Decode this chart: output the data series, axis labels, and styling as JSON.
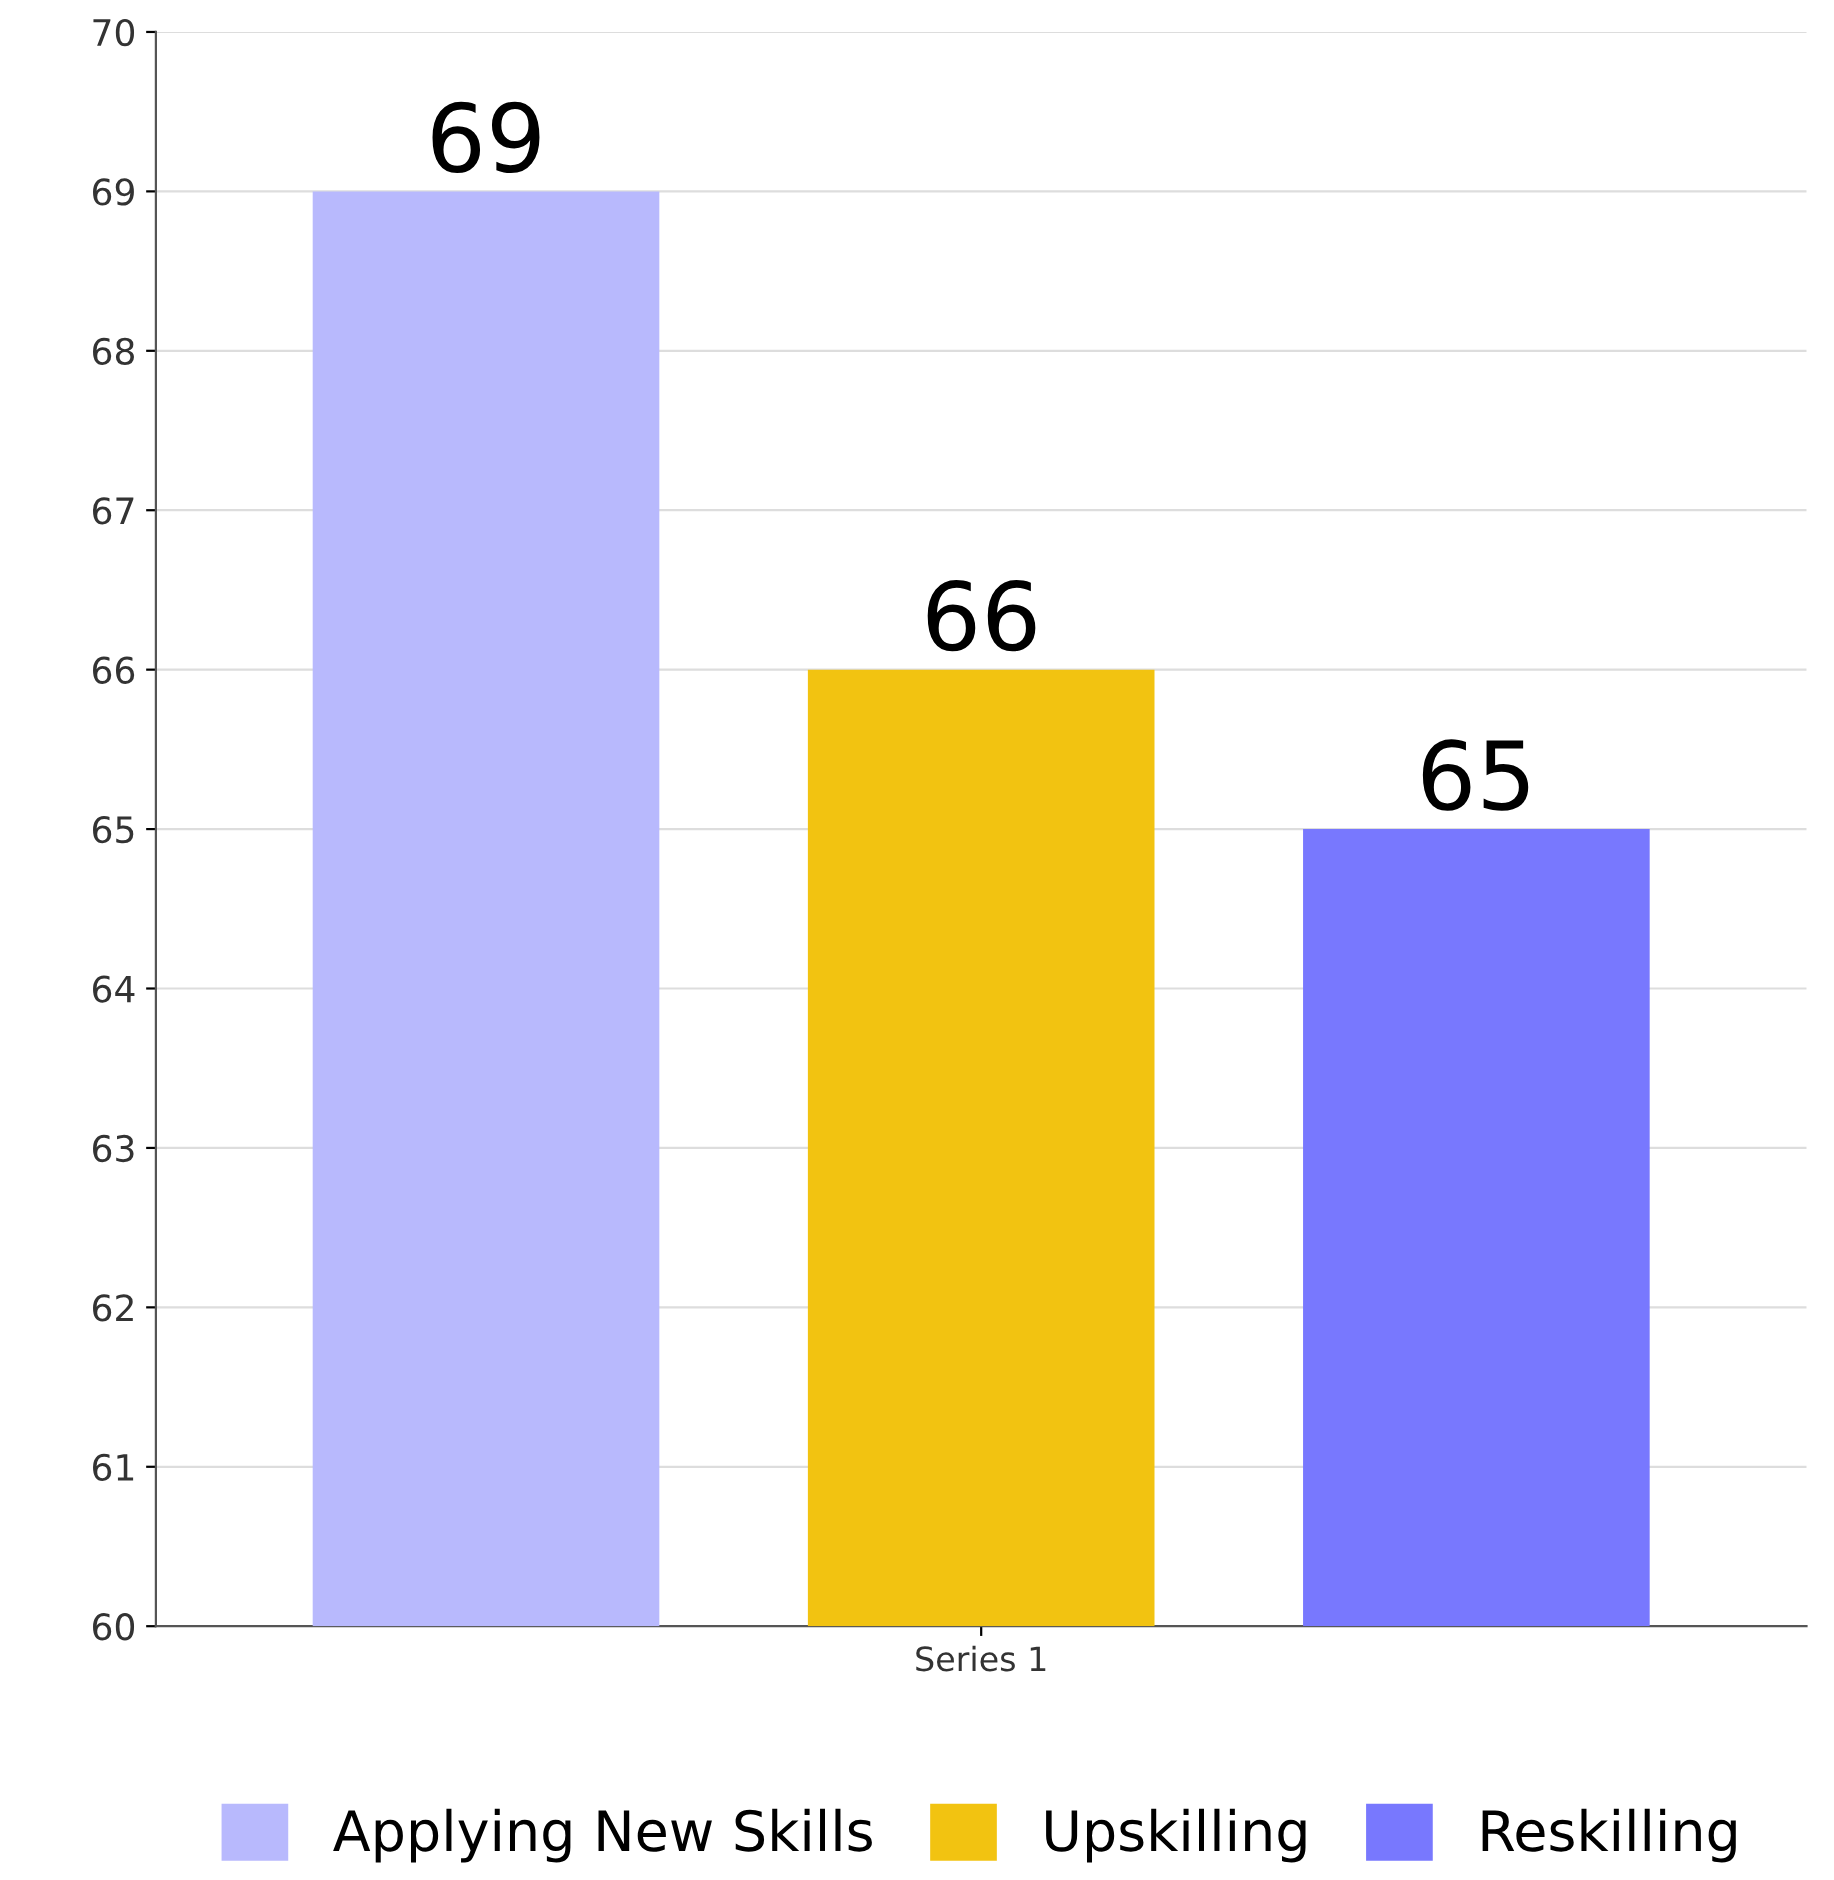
{
  "chart_data": {
    "type": "bar",
    "categories": [
      "Series 1"
    ],
    "series": [
      {
        "name": "Applying New Skills",
        "color": "#b8b9fd",
        "values": [
          69
        ]
      },
      {
        "name": "Upskilling",
        "color": "#f2c311",
        "values": [
          66
        ]
      },
      {
        "name": "Reskilling",
        "color": "#7878fe",
        "values": [
          65
        ]
      }
    ],
    "ylim": [
      60,
      70
    ],
    "yticks": [
      60,
      61,
      62,
      63,
      64,
      65,
      66,
      67,
      68,
      69,
      70
    ],
    "grid": "y",
    "legend": "bottom",
    "data_labels": true
  }
}
